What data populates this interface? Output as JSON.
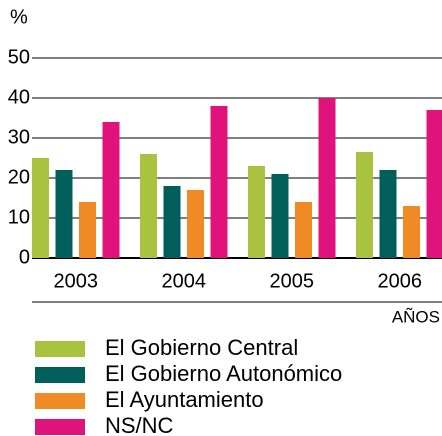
{
  "chart_data": {
    "type": "bar",
    "y_label": "%",
    "x_label": "AÑOS",
    "categories": [
      "2003",
      "2004",
      "2005",
      "2006"
    ],
    "series": [
      {
        "name": "El Gobierno Central",
        "color": "#a9c23f",
        "values": [
          25,
          26,
          23,
          26.5
        ]
      },
      {
        "name": "El Gobierno Autonómico",
        "color": "#005f5a",
        "values": [
          22,
          18,
          21,
          22
        ]
      },
      {
        "name": "El Ayuntamiento",
        "color": "#f08a24",
        "values": [
          14,
          17,
          14,
          13
        ]
      },
      {
        "name": "NS/NC",
        "color": "#e0127c",
        "values": [
          34,
          38,
          40,
          37
        ]
      }
    ],
    "ylim": [
      0,
      50
    ],
    "yticks": [
      0,
      10,
      20,
      30,
      40,
      50
    ],
    "grid": true
  }
}
